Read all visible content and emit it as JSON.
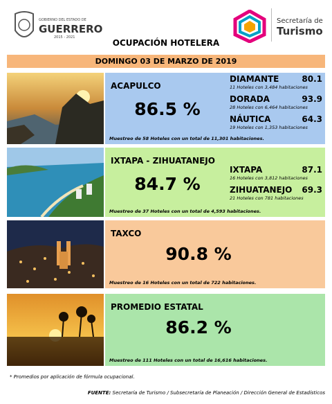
{
  "header": {
    "logo_left": [
      "GOBIERNO DEL ESTADO DE",
      "GUERRERO",
      "2015 - 2021"
    ],
    "title": "OCUPACIÓN HOTELERA",
    "logo_right": [
      "Secretaría de",
      "Turismo"
    ]
  },
  "date": "DOMINGO 03 DE MARZO DE 2019",
  "sections": [
    {
      "name": "ACAPULCO",
      "value": "86.5 %",
      "sample": "Muestreo de 58 Hoteles con un total de 11,301 habitaciones.",
      "zones": [
        {
          "name": "DIAMANTE",
          "value": "80.1",
          "detail": "11 Hoteles con 3,484 habitaciones"
        },
        {
          "name": "DORADA",
          "value": "93.9",
          "detail": "28 Hoteles con 6,464 habitaciones"
        },
        {
          "name": "NÁUTICA",
          "value": "64.3",
          "detail": "19 Hoteles con 1,353 habitaciones"
        }
      ]
    },
    {
      "name": "IXTAPA - ZIHUATANEJO",
      "value": "84.7 %",
      "sample": "Muestreo de 37 Hoteles con un total de 4,593 habitaciones.",
      "zones": [
        {
          "name": "IXTAPA",
          "value": "87.1",
          "detail": "16 Hoteles con 3,812 habitaciones"
        },
        {
          "name": "ZIHUATANEJO",
          "value": "69.3",
          "detail": "21 Hoteles con 781 habitaciones"
        }
      ]
    },
    {
      "name": "TAXCO",
      "value": "90.8 %",
      "sample": "Muestreo de 16 Hoteles con un total de 722 habitaciones.",
      "zones": []
    },
    {
      "name": "PROMEDIO ESTATAL",
      "value": "86.2 %",
      "sample": "Muestreo de 111 Hoteles con un total de 16,616 habitaciones.",
      "zones": []
    }
  ],
  "footnote": "* Promedios por aplicación de fórmula ocupacional.",
  "source": {
    "label": "FUENTE:",
    "text": "Secretaría de Turismo / Subsecretaría de Planeación / Dirección General de Estadísticos"
  }
}
